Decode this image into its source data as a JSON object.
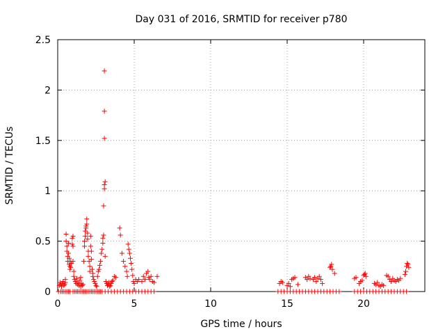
{
  "chart_data": {
    "type": "scatter",
    "title": "Day 031 of 2016, SRMTID for receiver p780",
    "xlabel": "GPS time / hours",
    "ylabel": "SRMTID / TECUs",
    "xlim": [
      0,
      24
    ],
    "ylim": [
      0,
      2.5
    ],
    "xticks": [
      0,
      5,
      10,
      15,
      20
    ],
    "yticks": [
      0,
      0.5,
      1,
      1.5,
      2,
      2.5
    ],
    "xtick_labels": [
      "0",
      "5",
      "10",
      "15",
      "20"
    ],
    "ytick_labels": [
      "0",
      "0.5",
      "1",
      "1.5",
      "2",
      "2.5"
    ],
    "grid": true,
    "marker": "+",
    "color": "#ff0000",
    "series": [
      {
        "name": "SRMTID",
        "points": [
          [
            0.1,
            0.06
          ],
          [
            0.15,
            0.09
          ],
          [
            0.2,
            0.07
          ],
          [
            0.25,
            0.05
          ],
          [
            0.3,
            0.08
          ],
          [
            0.35,
            0.1
          ],
          [
            0.4,
            0.06
          ],
          [
            0.45,
            0.07
          ],
          [
            0.5,
            0.09
          ],
          [
            0.5,
            0.12
          ],
          [
            0.55,
            0.5
          ],
          [
            0.55,
            0.57
          ],
          [
            0.6,
            0.45
          ],
          [
            0.6,
            0.4
          ],
          [
            0.65,
            0.35
          ],
          [
            0.65,
            0.3
          ],
          [
            0.7,
            0.38
          ],
          [
            0.7,
            0.48
          ],
          [
            0.75,
            0.33
          ],
          [
            0.75,
            0.27
          ],
          [
            0.8,
            0.25
          ],
          [
            0.8,
            0.22
          ],
          [
            0.85,
            0.24
          ],
          [
            0.85,
            0.3
          ],
          [
            0.9,
            0.28
          ],
          [
            0.95,
            0.53
          ],
          [
            0.95,
            0.47
          ],
          [
            1.0,
            0.45
          ],
          [
            1.0,
            0.55
          ],
          [
            1.0,
            0.3
          ],
          [
            1.05,
            0.2
          ],
          [
            1.05,
            0.15
          ],
          [
            1.1,
            0.12
          ],
          [
            1.15,
            0.1
          ],
          [
            1.2,
            0.08
          ],
          [
            1.25,
            0.13
          ],
          [
            1.3,
            0.07
          ],
          [
            1.35,
            0.09
          ],
          [
            1.4,
            0.06
          ],
          [
            1.45,
            0.11
          ],
          [
            1.5,
            0.14
          ],
          [
            1.5,
            0.05
          ],
          [
            1.55,
            0.08
          ],
          [
            1.6,
            0.06
          ],
          [
            1.65,
            0.07
          ],
          [
            1.7,
            0.3
          ],
          [
            1.75,
            0.45
          ],
          [
            1.75,
            0.5
          ],
          [
            1.8,
            0.55
          ],
          [
            1.8,
            0.6
          ],
          [
            1.85,
            0.63
          ],
          [
            1.85,
            0.65
          ],
          [
            1.9,
            0.67
          ],
          [
            1.9,
            0.72
          ],
          [
            1.95,
            0.58
          ],
          [
            1.95,
            0.52
          ],
          [
            2.0,
            0.4
          ],
          [
            2.0,
            0.35
          ],
          [
            2.05,
            0.3
          ],
          [
            2.1,
            0.25
          ],
          [
            2.1,
            0.2
          ],
          [
            2.15,
            0.55
          ],
          [
            2.15,
            0.45
          ],
          [
            2.2,
            0.4
          ],
          [
            2.2,
            0.32
          ],
          [
            2.25,
            0.22
          ],
          [
            2.3,
            0.15
          ],
          [
            2.3,
            0.18
          ],
          [
            2.35,
            0.12
          ],
          [
            2.4,
            0.1
          ],
          [
            2.45,
            0.08
          ],
          [
            2.5,
            0.06
          ],
          [
            2.55,
            0.05
          ],
          [
            2.6,
            0.15
          ],
          [
            2.65,
            0.2
          ],
          [
            2.7,
            0.22
          ],
          [
            2.75,
            0.26
          ],
          [
            2.8,
            0.3
          ],
          [
            2.85,
            0.38
          ],
          [
            2.9,
            0.42
          ],
          [
            2.95,
            0.48
          ],
          [
            2.95,
            0.53
          ],
          [
            3.0,
            0.56
          ],
          [
            3.0,
            0.85
          ],
          [
            3.05,
            1.02
          ],
          [
            3.05,
            1.06
          ],
          [
            3.1,
            1.09
          ],
          [
            3.05,
            1.52
          ],
          [
            3.05,
            1.79
          ],
          [
            3.05,
            2.19
          ],
          [
            3.1,
            0.35
          ],
          [
            3.15,
            0.1
          ],
          [
            3.2,
            0.08
          ],
          [
            3.25,
            0.06
          ],
          [
            3.3,
            0.07
          ],
          [
            3.35,
            0.09
          ],
          [
            3.4,
            0.05
          ],
          [
            3.45,
            0.06
          ],
          [
            3.5,
            0.08
          ],
          [
            3.55,
            0.1
          ],
          [
            3.6,
            0.11
          ],
          [
            3.7,
            0.15
          ],
          [
            3.8,
            0.14
          ],
          [
            4.05,
            0.63
          ],
          [
            4.1,
            0.56
          ],
          [
            4.2,
            0.38
          ],
          [
            4.3,
            0.3
          ],
          [
            4.4,
            0.25
          ],
          [
            4.5,
            0.2
          ],
          [
            4.55,
            0.15
          ],
          [
            4.6,
            0.47
          ],
          [
            4.65,
            0.42
          ],
          [
            4.7,
            0.38
          ],
          [
            4.75,
            0.33
          ],
          [
            4.8,
            0.28
          ],
          [
            4.85,
            0.22
          ],
          [
            4.9,
            0.16
          ],
          [
            4.95,
            0.1
          ],
          [
            5.0,
            0.08
          ],
          [
            5.1,
            0.12
          ],
          [
            5.2,
            0.1
          ],
          [
            5.3,
            0.12
          ],
          [
            5.5,
            0.1
          ],
          [
            5.6,
            0.15
          ],
          [
            5.7,
            0.12
          ],
          [
            5.8,
            0.18
          ],
          [
            5.9,
            0.2
          ],
          [
            5.95,
            0.14
          ],
          [
            6.0,
            0.12
          ],
          [
            6.1,
            0.15
          ],
          [
            6.2,
            0.1
          ],
          [
            6.3,
            0.09
          ],
          [
            6.5,
            0.15
          ],
          [
            14.5,
            0.08
          ],
          [
            14.6,
            0.1
          ],
          [
            14.7,
            0.09
          ],
          [
            15.0,
            0.06
          ],
          [
            15.1,
            0.08
          ],
          [
            15.2,
            0.05
          ],
          [
            15.3,
            0.12
          ],
          [
            15.4,
            0.13
          ],
          [
            15.5,
            0.14
          ],
          [
            15.7,
            0.07
          ],
          [
            16.2,
            0.14
          ],
          [
            16.3,
            0.12
          ],
          [
            16.4,
            0.15
          ],
          [
            16.5,
            0.13
          ],
          [
            16.7,
            0.12
          ],
          [
            16.8,
            0.14
          ],
          [
            16.9,
            0.1
          ],
          [
            17.0,
            0.13
          ],
          [
            17.1,
            0.15
          ],
          [
            17.2,
            0.12
          ],
          [
            17.3,
            0.08
          ],
          [
            17.8,
            0.24
          ],
          [
            17.85,
            0.25
          ],
          [
            17.9,
            0.27
          ],
          [
            17.95,
            0.22
          ],
          [
            18.1,
            0.18
          ],
          [
            19.4,
            0.13
          ],
          [
            19.5,
            0.14
          ],
          [
            19.7,
            0.08
          ],
          [
            19.8,
            0.1
          ],
          [
            19.9,
            0.11
          ],
          [
            20.0,
            0.16
          ],
          [
            20.05,
            0.17
          ],
          [
            20.1,
            0.18
          ],
          [
            20.15,
            0.15
          ],
          [
            20.7,
            0.08
          ],
          [
            20.8,
            0.07
          ],
          [
            20.9,
            0.09
          ],
          [
            21.0,
            0.06
          ],
          [
            21.1,
            0.05
          ],
          [
            21.2,
            0.07
          ],
          [
            21.3,
            0.06
          ],
          [
            21.5,
            0.16
          ],
          [
            21.6,
            0.15
          ],
          [
            21.7,
            0.12
          ],
          [
            21.8,
            0.1
          ],
          [
            21.9,
            0.13
          ],
          [
            22.0,
            0.11
          ],
          [
            22.1,
            0.1
          ],
          [
            22.2,
            0.12
          ],
          [
            22.3,
            0.11
          ],
          [
            22.4,
            0.13
          ],
          [
            22.7,
            0.17
          ],
          [
            22.75,
            0.2
          ],
          [
            22.8,
            0.25
          ],
          [
            22.85,
            0.28
          ],
          [
            22.9,
            0.27
          ],
          [
            22.95,
            0.24
          ]
        ],
        "zero_times": [
          0.05,
          0.2,
          0.3,
          0.4,
          0.5,
          0.6,
          0.7,
          0.8,
          1.0,
          1.1,
          1.2,
          1.3,
          1.4,
          1.5,
          1.6,
          1.7,
          1.8,
          1.9,
          2.0,
          2.1,
          2.2,
          2.3,
          2.4,
          2.5,
          2.6,
          2.7,
          2.8,
          2.9,
          3.1,
          3.3,
          3.5,
          3.7,
          3.9,
          4.1,
          4.3,
          4.5,
          4.7,
          4.9,
          5.1,
          5.3,
          5.5,
          5.7,
          5.9,
          6.1,
          6.3,
          14.4,
          14.6,
          14.8,
          15.0,
          15.2,
          15.4,
          15.6,
          15.8,
          16.0,
          16.2,
          16.4,
          16.6,
          16.8,
          17.0,
          17.2,
          17.4,
          17.6,
          17.8,
          18.0,
          18.2,
          18.4,
          19.4,
          19.6,
          19.8,
          20.0,
          20.2,
          20.4,
          20.6,
          20.8,
          21.0,
          21.2,
          21.4,
          21.6,
          21.8,
          22.0,
          22.2,
          22.4,
          22.6,
          22.8
        ]
      }
    ]
  }
}
